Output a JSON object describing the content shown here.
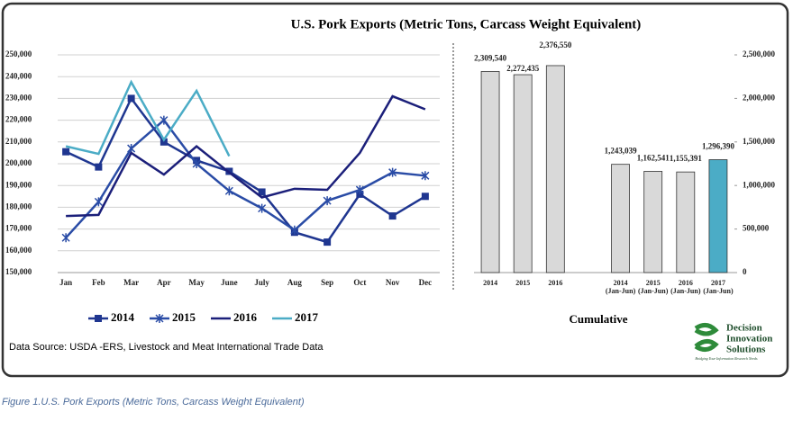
{
  "chart_data": [
    {
      "type": "line",
      "title": "U.S. Pork Exports  (Metric Tons, Carcass Weight Equivalent)",
      "categories": [
        "Jan",
        "Feb",
        "Mar",
        "Apr",
        "May",
        "June",
        "July",
        "Aug",
        "Sep",
        "Oct",
        "Nov",
        "Dec"
      ],
      "series": [
        {
          "name": "2014",
          "color": "#1f3690",
          "marker": "square",
          "values": [
            205500,
            198500,
            230000,
            210000,
            201500,
            196500,
            187000,
            168500,
            164000,
            186000,
            176000,
            185000
          ]
        },
        {
          "name": "2015",
          "color": "#2a4ca6",
          "marker": "star",
          "values": [
            166000,
            182500,
            207000,
            220000,
            200000,
            187500,
            179500,
            169500,
            183000,
            188000,
            196000,
            194500
          ]
        },
        {
          "name": "2016",
          "color": "#1b1f7a",
          "marker": "none",
          "values": [
            176000,
            176500,
            205000,
            195000,
            208000,
            196000,
            184500,
            188500,
            188000,
            205000,
            231000,
            225000
          ]
        },
        {
          "name": "2017",
          "color": "#4bacc6",
          "marker": "none",
          "values": [
            208000,
            204500,
            237500,
            211000,
            233500,
            203500,
            null,
            null,
            null,
            null,
            null,
            null
          ]
        }
      ],
      "ylim": [
        150000,
        250000
      ],
      "yticks": [
        {
          "value": 150000,
          "label": "150,000"
        },
        {
          "value": 160000,
          "label": "160,000"
        },
        {
          "value": 170000,
          "label": "170,000"
        },
        {
          "value": 180000,
          "label": "180,000"
        },
        {
          "value": 190000,
          "label": "190,000"
        },
        {
          "value": 200000,
          "label": "200,000"
        },
        {
          "value": 210000,
          "label": "210,000"
        },
        {
          "value": 220000,
          "label": "220,000"
        },
        {
          "value": 230000,
          "label": "230,000"
        },
        {
          "value": 240000,
          "label": "240,000"
        },
        {
          "value": 250000,
          "label": "250,000"
        }
      ],
      "grid": true,
      "legend": "bottom"
    },
    {
      "type": "bar",
      "xlabel": "Cumulative",
      "categories": [
        "2014",
        "2015",
        "2016",
        null,
        "2014 (Jan-Jun)",
        "2015 (Jan-Jun)",
        "2016 (Jan-Jun)",
        "2017 (Jan-Jun)"
      ],
      "values": [
        2309540,
        2272435,
        2376550,
        null,
        1243039,
        1162541,
        1155391,
        1296390
      ],
      "value_labels": [
        "2,309,540",
        "2,272,435",
        "2,376,550",
        null,
        "1,243,039",
        "1,162,541",
        "1,155,391",
        "1,296,390"
      ],
      "colors": [
        "#d9d9d9",
        "#d9d9d9",
        "#d9d9d9",
        null,
        "#d9d9d9",
        "#d9d9d9",
        "#d9d9d9",
        "#4bacc6"
      ],
      "ylim": [
        0,
        2500000
      ],
      "yticks": [
        0,
        {
          "value": 500000,
          "label": "500,000"
        },
        {
          "value": 1000000,
          "label": "1,000,000"
        },
        {
          "value": 1500000,
          "label": "1,500,000"
        },
        {
          "value": 2000000,
          "label": "2,000,000"
        },
        {
          "value": 2500000,
          "label": "2,500,000"
        }
      ],
      "axis_side": "right"
    }
  ],
  "source": "Data Source: USDA -ERS, Livestock and Meat International Trade Data",
  "logo": {
    "lines": [
      "Decision",
      "Innovation",
      "Solutions"
    ],
    "tagline": "Bridging Your Information Research Needs"
  },
  "caption": "Figure 1.U.S. Pork Exports (Metric Tons, Carcass Weight Equivalent)"
}
